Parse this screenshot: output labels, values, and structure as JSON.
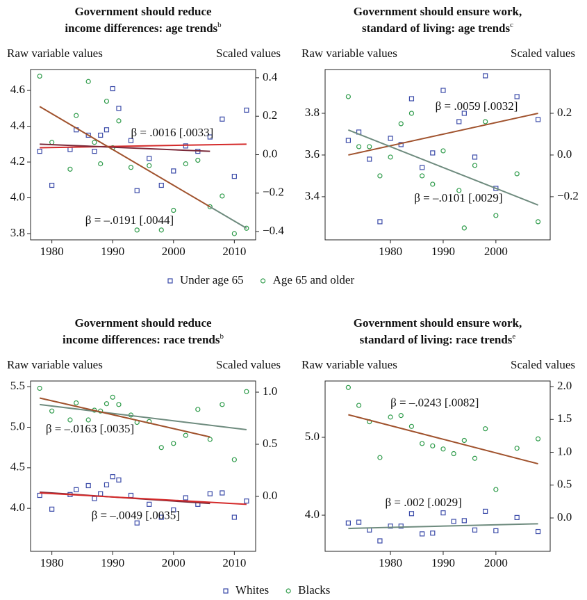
{
  "chart_data": [
    {
      "type": "scatter",
      "title": [
        "Government should reduce",
        "income differences: age trends"
      ],
      "title_note": "b",
      "ylabel": "Raw variable values",
      "y2label": "Scaled values",
      "xlim": [
        1976.5,
        2013.5
      ],
      "xticks": [
        1980,
        1990,
        2000,
        2010
      ],
      "ylim": [
        3.765,
        4.717
      ],
      "yticks": [
        {
          "value": 3.8,
          "label": "3.8"
        },
        {
          "value": 4.0,
          "label": "4.0"
        },
        {
          "value": 4.2,
          "label": "4.2"
        },
        {
          "value": 4.4,
          "label": "4.4"
        },
        {
          "value": 4.6,
          "label": "4.6"
        }
      ],
      "y2lim": [
        -0.443,
        0.443
      ],
      "y2ticks": [
        {
          "value": -0.4,
          "label": "−0.4"
        },
        {
          "value": -0.2,
          "label": "−0.2"
        },
        {
          "value": 0,
          "label": "0.0"
        },
        0.2,
        0.4
      ],
      "series": [
        {
          "marker": "square",
          "color": "#3a4aa8",
          "x": [
            1978,
            1980,
            1983,
            1984,
            1986,
            1987,
            1988,
            1989,
            1990,
            1991,
            1993,
            1994,
            1996,
            1998,
            2000,
            2002,
            2004,
            2006,
            2008,
            2010,
            2012
          ],
          "values": [
            4.26,
            4.07,
            4.27,
            4.38,
            4.35,
            4.26,
            4.35,
            4.38,
            4.61,
            4.5,
            4.32,
            4.04,
            4.22,
            4.07,
            4.15,
            4.29,
            4.26,
            4.34,
            4.44,
            4.12,
            4.49
          ]
        },
        {
          "marker": "circle",
          "color": "#2e9b4a",
          "x": [
            1978,
            1980,
            1983,
            1984,
            1986,
            1987,
            1988,
            1989,
            1990,
            1991,
            1993,
            1994,
            1996,
            1998,
            2000,
            2002,
            2004,
            2006,
            2008,
            2010,
            2012
          ],
          "values": [
            4.68,
            4.31,
            4.16,
            4.46,
            4.65,
            4.31,
            4.19,
            4.54,
            4.28,
            4.43,
            4.17,
            3.82,
            4.18,
            3.82,
            3.93,
            4.19,
            4.21,
            3.95,
            4.01,
            3.8,
            3.83
          ]
        }
      ],
      "lines": [
        {
          "color": "#d42a2a",
          "x": [
            1978,
            2012
          ],
          "values": [
            4.28,
            4.3
          ]
        },
        {
          "color": "#7b2a3a",
          "x": [
            1978,
            2006
          ],
          "values": [
            4.3,
            4.26
          ]
        },
        {
          "color": "#a0522d",
          "x": [
            1978,
            2006
          ],
          "values": [
            4.51,
            3.95
          ]
        },
        {
          "color": "#6e8b7e",
          "x": [
            2006,
            2012
          ],
          "values": [
            3.95,
            3.83
          ]
        }
      ],
      "annotations": [
        {
          "text": "β = .0016 [.0033]",
          "x": 1993,
          "y": 4.36
        },
        {
          "text": "β = –.0191 [.0044]",
          "x": 1985.5,
          "y": 3.87
        }
      ]
    },
    {
      "type": "scatter",
      "title": [
        "Government should ensure work,",
        "standard of living: age trends"
      ],
      "title_note": "c",
      "ylabel": "Raw variable values",
      "y2label": "Scaled values",
      "xlim": [
        1967.6,
        2010.3
      ],
      "xticks": [
        1980,
        1990,
        2000
      ],
      "ylim": [
        3.193,
        4.01
      ],
      "yticks": [
        3.4,
        3.6,
        3.8
      ],
      "y2lim": [
        -0.407,
        0.41
      ],
      "y2ticks": [
        {
          "value": -0.2,
          "label": "−0.2"
        },
        {
          "value": 0,
          "label": "0.0"
        },
        0.2
      ],
      "series": [
        {
          "marker": "square",
          "color": "#3a4aa8",
          "x": [
            1972,
            1974,
            1976,
            1978,
            1980,
            1982,
            1984,
            1986,
            1988,
            1990,
            1993,
            1994,
            1996,
            1998,
            2000,
            2004,
            2008
          ],
          "values": [
            3.67,
            3.71,
            3.58,
            3.28,
            3.68,
            3.65,
            3.87,
            3.54,
            3.61,
            3.91,
            3.76,
            3.8,
            3.59,
            3.98,
            3.44,
            3.88,
            3.77
          ]
        },
        {
          "marker": "circle",
          "color": "#2e9b4a",
          "x": [
            1972,
            1974,
            1976,
            1978,
            1980,
            1982,
            1984,
            1986,
            1988,
            1990,
            1993,
            1994,
            1996,
            1998,
            2000,
            2004,
            2008
          ],
          "values": [
            3.88,
            3.64,
            3.64,
            3.5,
            3.59,
            3.75,
            3.8,
            3.5,
            3.46,
            3.62,
            3.43,
            3.25,
            3.55,
            3.76,
            3.31,
            3.51,
            3.28
          ]
        }
      ],
      "lines": [
        {
          "color": "#a0522d",
          "x": [
            1972,
            2008
          ],
          "values": [
            3.6,
            3.8
          ]
        },
        {
          "color": "#6e8b7e",
          "x": [
            1972,
            2008
          ],
          "values": [
            3.72,
            3.36
          ]
        }
      ],
      "annotations": [
        {
          "text": "β = .0059 [.0032]",
          "x": 1988.5,
          "y": 3.83
        },
        {
          "text": "β = –.0101 [.0029]",
          "x": 1984.5,
          "y": 3.39
        }
      ]
    },
    {
      "type": "scatter",
      "title": [
        "Government should reduce",
        "income differences: race trends"
      ],
      "title_note": "b",
      "ylabel": "Raw variable values",
      "y2label": "Scaled values",
      "xlim": [
        1976.5,
        2013.5
      ],
      "xticks": [
        1980,
        1990,
        2000,
        2010
      ],
      "ylim": [
        3.47,
        5.57
      ],
      "yticks": [
        {
          "value": 4.0,
          "label": "4.0"
        },
        4.5,
        {
          "value": 5.0,
          "label": "5.0"
        },
        5.5
      ],
      "y2lim": [
        -0.527,
        1.107
      ],
      "y2ticks": [
        {
          "value": 0,
          "label": "0.0"
        },
        0.5,
        {
          "value": 1.0,
          "label": "1.0"
        }
      ],
      "series": [
        {
          "marker": "square",
          "color": "#3a4aa8",
          "x": [
            1978,
            1980,
            1983,
            1984,
            1986,
            1987,
            1988,
            1989,
            1990,
            1991,
            1993,
            1994,
            1996,
            1998,
            2000,
            2002,
            2004,
            2006,
            2008,
            2010,
            2012
          ],
          "values": [
            4.16,
            3.99,
            4.17,
            4.23,
            4.28,
            4.12,
            4.18,
            4.29,
            4.39,
            4.35,
            4.16,
            3.82,
            4.05,
            3.89,
            3.98,
            4.13,
            4.05,
            4.18,
            4.19,
            3.89,
            4.09
          ]
        },
        {
          "marker": "circle",
          "color": "#2e9b4a",
          "x": [
            1978,
            1980,
            1983,
            1984,
            1986,
            1987,
            1988,
            1989,
            1990,
            1991,
            1993,
            1994,
            1996,
            1998,
            2000,
            2002,
            2004,
            2006,
            2008,
            2010,
            2012
          ],
          "values": [
            5.48,
            5.2,
            5.09,
            5.3,
            5.09,
            5.21,
            5.2,
            5.29,
            5.37,
            5.28,
            5.15,
            5.06,
            5.07,
            4.75,
            4.8,
            4.9,
            5.22,
            4.85,
            5.28,
            4.6,
            5.44
          ]
        }
      ],
      "lines": [
        {
          "color": "#6e8b7e",
          "x": [
            1978,
            2012
          ],
          "values": [
            5.28,
            4.97
          ]
        },
        {
          "color": "#a0522d",
          "x": [
            1978,
            2006
          ],
          "values": [
            5.36,
            4.88
          ]
        },
        {
          "color": "#7b2a3a",
          "x": [
            1978,
            2006
          ],
          "values": [
            4.2,
            4.06
          ]
        },
        {
          "color": "#d42a2a",
          "x": [
            1978,
            2012
          ],
          "values": [
            4.19,
            4.05
          ]
        }
      ],
      "annotations": [
        {
          "text": "β = –.0163 [.0035]",
          "x": 1979,
          "y": 4.97
        },
        {
          "text": "β = –.0049 [.0035]",
          "x": 1986.5,
          "y": 3.9
        }
      ]
    },
    {
      "type": "scatter",
      "title": [
        "Government should ensure work,",
        "standard of living: race trends"
      ],
      "title_note": "e",
      "ylabel": "Raw variable values",
      "y2label": "Scaled values",
      "xlim": [
        1967.6,
        2010.3
      ],
      "xticks": [
        1980,
        1990,
        2000
      ],
      "ylim": [
        3.536,
        5.723
      ],
      "yticks": [
        {
          "value": 4.0,
          "label": "4.0"
        },
        {
          "value": 5.0,
          "label": "5.0"
        }
      ],
      "y2lim": [
        -0.508,
        2.085
      ],
      "y2ticks": [
        {
          "value": 0,
          "label": "0.0"
        },
        0.5,
        {
          "value": 1.0,
          "label": "1.0"
        },
        1.5,
        {
          "value": 2.0,
          "label": "2.0"
        }
      ],
      "series": [
        {
          "marker": "square",
          "color": "#3a4aa8",
          "x": [
            1972,
            1974,
            1976,
            1978,
            1980,
            1982,
            1984,
            1986,
            1988,
            1990,
            1992,
            1994,
            1996,
            1998,
            2000,
            2004,
            2008
          ],
          "values": [
            3.9,
            3.91,
            3.81,
            3.67,
            3.86,
            3.86,
            4.02,
            3.76,
            3.77,
            4.03,
            3.92,
            3.93,
            3.81,
            4.05,
            3.8,
            3.97,
            3.79
          ]
        },
        {
          "marker": "circle",
          "color": "#2e9b4a",
          "x": [
            1972,
            1974,
            1976,
            1978,
            1980,
            1982,
            1984,
            1986,
            1988,
            1990,
            1992,
            1994,
            1996,
            1998,
            2000,
            2004,
            2008
          ],
          "values": [
            5.64,
            5.41,
            5.2,
            4.74,
            5.26,
            5.28,
            5.14,
            4.92,
            4.89,
            4.85,
            4.79,
            4.96,
            4.73,
            5.11,
            4.33,
            4.86,
            4.98
          ]
        }
      ],
      "lines": [
        {
          "color": "#a0522d",
          "x": [
            1972,
            2008
          ],
          "values": [
            5.29,
            4.66
          ]
        },
        {
          "color": "#6e8b7e",
          "x": [
            1972,
            2008
          ],
          "values": [
            3.83,
            3.89
          ]
        }
      ],
      "annotations": [
        {
          "text": "β = –.0243 [.0082]",
          "x": 1980,
          "y": 5.43
        },
        {
          "text": "β = .002 [.0029]",
          "x": 1979,
          "y": 4.15
        }
      ]
    }
  ],
  "legends": [
    {
      "items": [
        {
          "name": "Under age 65",
          "marker": "square",
          "color": "#3a4aa8"
        },
        {
          "name": "Age 65 and older",
          "marker": "circle",
          "color": "#2e9b4a"
        }
      ]
    },
    {
      "items": [
        {
          "name": "Whites",
          "marker": "square",
          "color": "#3a4aa8"
        },
        {
          "name": "Blacks",
          "marker": "circle",
          "color": "#2e9b4a"
        }
      ]
    }
  ]
}
